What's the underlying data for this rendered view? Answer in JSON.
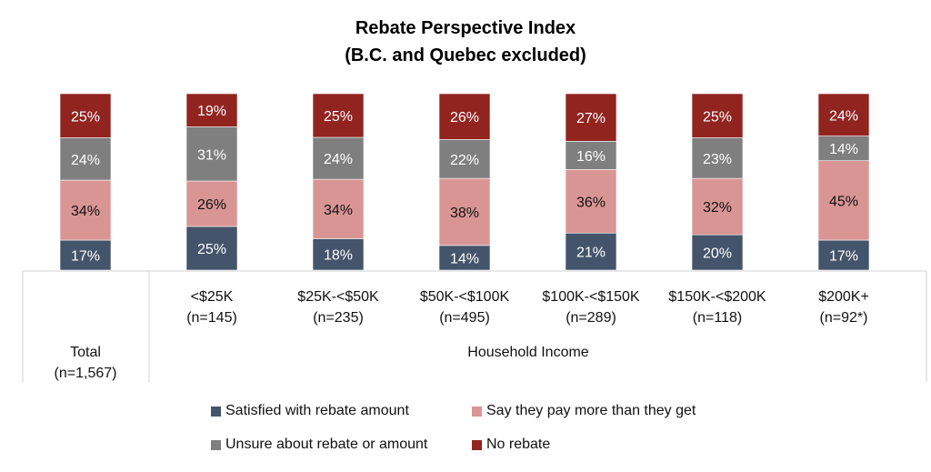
{
  "chart_data": {
    "type": "bar",
    "stacked": true,
    "percent": true,
    "title": "Rebate Perspective Index",
    "subtitle": "(B.C. and Quebec excluded)",
    "categories": [
      {
        "label": "Total",
        "n": "(n=1,567)"
      },
      {
        "label": "<$25K",
        "n": "(n=145)"
      },
      {
        "label": "$25K-<$50K",
        "n": "(n=235)"
      },
      {
        "label": "$50K-<$100K",
        "n": "(n=495)"
      },
      {
        "label": "$100K-<$150K",
        "n": "(n=289)"
      },
      {
        "label": "$150K-<$200K",
        "n": "(n=118)"
      },
      {
        "label": "$200K+",
        "n": "(n=92*)"
      }
    ],
    "group_label": "Household Income",
    "series": [
      {
        "name": "Satisfied with rebate amount",
        "color": "#44546a",
        "label_color": "#ffffff",
        "values": [
          17,
          25,
          18,
          14,
          21,
          20,
          17
        ]
      },
      {
        "name": "Say they pay more than they get",
        "color": "#d99594",
        "label_color": "#111111",
        "values": [
          34,
          26,
          34,
          38,
          36,
          32,
          45
        ]
      },
      {
        "name": "Unsure about rebate or amount",
        "color": "#7f7f7f",
        "label_color": "#ffffff",
        "values": [
          24,
          31,
          24,
          22,
          16,
          23,
          14
        ]
      },
      {
        "name": "No rebate",
        "color": "#922420",
        "label_color": "#ffffff",
        "values": [
          25,
          19,
          25,
          26,
          27,
          25,
          24
        ]
      }
    ],
    "value_suffix": "%",
    "ylim": [
      0,
      100
    ],
    "grid": false,
    "legend_position": "bottom"
  }
}
